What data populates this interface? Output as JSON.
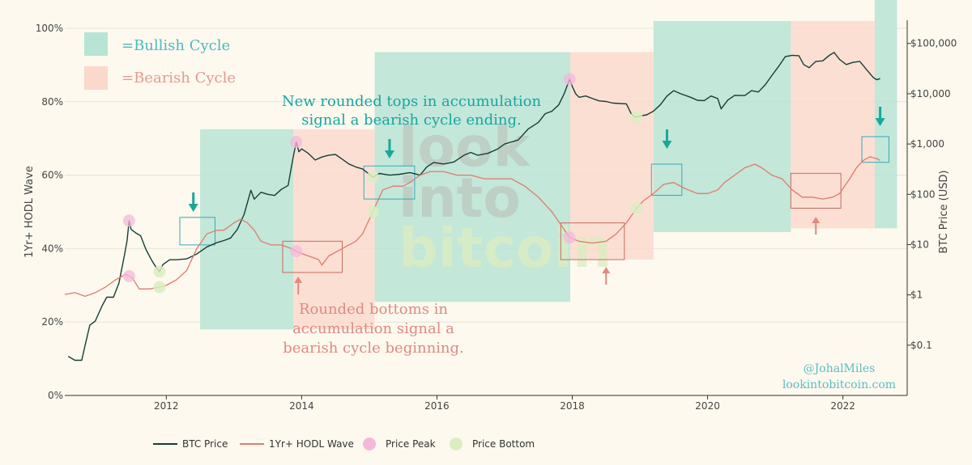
{
  "chart_data": {
    "type": "line",
    "title": "",
    "x_axis": {
      "range": [
        2010.5,
        2022.95
      ],
      "ticks": [
        2012,
        2014,
        2016,
        2018,
        2020,
        2022
      ],
      "tick_labels": [
        "2012",
        "2014",
        "2016",
        "2018",
        "2020",
        "2022"
      ]
    },
    "y_axis_left": {
      "label": "1Yr+ HODL Wave",
      "range": [
        0,
        100
      ],
      "ticks": [
        0,
        20,
        40,
        60,
        80,
        100
      ],
      "tick_labels": [
        "0%",
        "20%",
        "40%",
        "60%",
        "80%",
        "100%"
      ]
    },
    "y_axis_right": {
      "label": "BTC Price (USD)",
      "scale": "log",
      "range": [
        0.01,
        200000
      ],
      "ticks": [
        0.1,
        1,
        10,
        100,
        1000,
        10000,
        100000
      ],
      "tick_labels": [
        "$0.1",
        "$1",
        "$10",
        "$100",
        "$1,000",
        "$10,000",
        "$100,000"
      ]
    },
    "series": [
      {
        "name": "BTC Price",
        "axis": "right",
        "color": "#163e36",
        "points": [
          [
            2010.55,
            0.06
          ],
          [
            2010.65,
            0.05
          ],
          [
            2010.75,
            0.05
          ],
          [
            2010.8,
            0.1
          ],
          [
            2010.87,
            0.25
          ],
          [
            2010.95,
            0.3
          ],
          [
            2011.05,
            0.6
          ],
          [
            2011.12,
            0.9
          ],
          [
            2011.22,
            0.9
          ],
          [
            2011.3,
            1.7
          ],
          [
            2011.38,
            6
          ],
          [
            2011.42,
            12
          ],
          [
            2011.45,
            30
          ],
          [
            2011.48,
            20
          ],
          [
            2011.55,
            17
          ],
          [
            2011.62,
            15
          ],
          [
            2011.7,
            8
          ],
          [
            2011.78,
            5
          ],
          [
            2011.85,
            3.5
          ],
          [
            2011.9,
            2.9
          ],
          [
            2011.95,
            4
          ],
          [
            2012.05,
            5
          ],
          [
            2012.15,
            5
          ],
          [
            2012.3,
            5.2
          ],
          [
            2012.45,
            6.5
          ],
          [
            2012.6,
            9
          ],
          [
            2012.75,
            11
          ],
          [
            2012.85,
            12
          ],
          [
            2012.95,
            13.5
          ],
          [
            2013.05,
            20
          ],
          [
            2013.15,
            40
          ],
          [
            2013.25,
            120
          ],
          [
            2013.3,
            80
          ],
          [
            2013.4,
            110
          ],
          [
            2013.5,
            100
          ],
          [
            2013.6,
            95
          ],
          [
            2013.7,
            125
          ],
          [
            2013.8,
            150
          ],
          [
            2013.87,
            500
          ],
          [
            2013.92,
            1100
          ],
          [
            2013.96,
            700
          ],
          [
            2014.0,
            800
          ],
          [
            2014.1,
            650
          ],
          [
            2014.2,
            480
          ],
          [
            2014.3,
            550
          ],
          [
            2014.4,
            600
          ],
          [
            2014.5,
            620
          ],
          [
            2014.6,
            500
          ],
          [
            2014.7,
            400
          ],
          [
            2014.8,
            350
          ],
          [
            2014.9,
            320
          ],
          [
            2015.0,
            250
          ],
          [
            2015.05,
            220
          ],
          [
            2015.15,
            260
          ],
          [
            2015.3,
            240
          ],
          [
            2015.45,
            250
          ],
          [
            2015.6,
            270
          ],
          [
            2015.75,
            240
          ],
          [
            2015.85,
            350
          ],
          [
            2015.95,
            430
          ],
          [
            2016.1,
            400
          ],
          [
            2016.25,
            440
          ],
          [
            2016.4,
            600
          ],
          [
            2016.5,
            680
          ],
          [
            2016.6,
            600
          ],
          [
            2016.75,
            650
          ],
          [
            2016.9,
            800
          ],
          [
            2017.0,
            1000
          ],
          [
            2017.1,
            1100
          ],
          [
            2017.2,
            1200
          ],
          [
            2017.35,
            2000
          ],
          [
            2017.5,
            2700
          ],
          [
            2017.6,
            4000
          ],
          [
            2017.7,
            4500
          ],
          [
            2017.8,
            6000
          ],
          [
            2017.88,
            10000
          ],
          [
            2017.96,
            19500
          ],
          [
            2018.0,
            14000
          ],
          [
            2018.05,
            10000
          ],
          [
            2018.1,
            8500
          ],
          [
            2018.2,
            9000
          ],
          [
            2018.3,
            8000
          ],
          [
            2018.4,
            7200
          ],
          [
            2018.5,
            7000
          ],
          [
            2018.6,
            6500
          ],
          [
            2018.7,
            6400
          ],
          [
            2018.8,
            6300
          ],
          [
            2018.87,
            4000
          ],
          [
            2018.93,
            3400
          ],
          [
            2019.0,
            3600
          ],
          [
            2019.1,
            3800
          ],
          [
            2019.2,
            4500
          ],
          [
            2019.3,
            6000
          ],
          [
            2019.4,
            9000
          ],
          [
            2019.5,
            11500
          ],
          [
            2019.6,
            10000
          ],
          [
            2019.75,
            8500
          ],
          [
            2019.85,
            7400
          ],
          [
            2019.95,
            7300
          ],
          [
            2020.05,
            9000
          ],
          [
            2020.15,
            8000
          ],
          [
            2020.2,
            5000
          ],
          [
            2020.3,
            7500
          ],
          [
            2020.4,
            9300
          ],
          [
            2020.55,
            9200
          ],
          [
            2020.65,
            11500
          ],
          [
            2020.75,
            10800
          ],
          [
            2020.85,
            15000
          ],
          [
            2020.95,
            23000
          ],
          [
            2021.05,
            35000
          ],
          [
            2021.15,
            55000
          ],
          [
            2021.25,
            58000
          ],
          [
            2021.35,
            57000
          ],
          [
            2021.42,
            38000
          ],
          [
            2021.5,
            33000
          ],
          [
            2021.6,
            44000
          ],
          [
            2021.7,
            45000
          ],
          [
            2021.8,
            58000
          ],
          [
            2021.87,
            66000
          ],
          [
            2021.95,
            48000
          ],
          [
            2022.05,
            38000
          ],
          [
            2022.15,
            42000
          ],
          [
            2022.25,
            44000
          ],
          [
            2022.35,
            30000
          ],
          [
            2022.45,
            21000
          ],
          [
            2022.5,
            19000
          ],
          [
            2022.55,
            20000
          ]
        ]
      },
      {
        "name": "1Yr+ HODL Wave",
        "axis": "left",
        "color": "#e07a6e",
        "points": [
          [
            2010.5,
            27.5
          ],
          [
            2010.65,
            28
          ],
          [
            2010.8,
            27
          ],
          [
            2010.95,
            28
          ],
          [
            2011.1,
            29.5
          ],
          [
            2011.25,
            31.5
          ],
          [
            2011.4,
            33
          ],
          [
            2011.5,
            32
          ],
          [
            2011.6,
            29
          ],
          [
            2011.75,
            29
          ],
          [
            2011.9,
            29.5
          ],
          [
            2012.0,
            30
          ],
          [
            2012.15,
            31.5
          ],
          [
            2012.3,
            34
          ],
          [
            2012.45,
            40
          ],
          [
            2012.6,
            44
          ],
          [
            2012.75,
            45
          ],
          [
            2012.85,
            45
          ],
          [
            2013.0,
            47
          ],
          [
            2013.1,
            48
          ],
          [
            2013.2,
            47
          ],
          [
            2013.3,
            45
          ],
          [
            2013.4,
            42
          ],
          [
            2013.55,
            41
          ],
          [
            2013.7,
            41
          ],
          [
            2013.85,
            40
          ],
          [
            2013.95,
            39
          ],
          [
            2014.1,
            38
          ],
          [
            2014.25,
            37
          ],
          [
            2014.3,
            35.5
          ],
          [
            2014.4,
            38
          ],
          [
            2014.6,
            40
          ],
          [
            2014.8,
            42
          ],
          [
            2014.9,
            44
          ],
          [
            2015.0,
            48
          ],
          [
            2015.1,
            52
          ],
          [
            2015.2,
            56
          ],
          [
            2015.35,
            57
          ],
          [
            2015.5,
            57
          ],
          [
            2015.6,
            58
          ],
          [
            2015.75,
            60
          ],
          [
            2015.9,
            61
          ],
          [
            2016.1,
            61
          ],
          [
            2016.3,
            60
          ],
          [
            2016.5,
            60
          ],
          [
            2016.7,
            59
          ],
          [
            2016.9,
            59
          ],
          [
            2017.1,
            59
          ],
          [
            2017.3,
            57
          ],
          [
            2017.5,
            54
          ],
          [
            2017.7,
            50
          ],
          [
            2017.85,
            46
          ],
          [
            2017.96,
            43
          ],
          [
            2018.1,
            42
          ],
          [
            2018.3,
            41.5
          ],
          [
            2018.5,
            42
          ],
          [
            2018.65,
            44
          ],
          [
            2018.8,
            47
          ],
          [
            2018.95,
            51
          ],
          [
            2019.05,
            53
          ],
          [
            2019.2,
            55
          ],
          [
            2019.35,
            57.5
          ],
          [
            2019.5,
            58
          ],
          [
            2019.65,
            56.5
          ],
          [
            2019.85,
            55
          ],
          [
            2020.0,
            55
          ],
          [
            2020.15,
            56
          ],
          [
            2020.25,
            58
          ],
          [
            2020.4,
            60
          ],
          [
            2020.55,
            62
          ],
          [
            2020.7,
            63
          ],
          [
            2020.8,
            62
          ],
          [
            2020.95,
            60
          ],
          [
            2021.1,
            59
          ],
          [
            2021.25,
            56
          ],
          [
            2021.4,
            54
          ],
          [
            2021.55,
            54
          ],
          [
            2021.7,
            53.5
          ],
          [
            2021.85,
            54
          ],
          [
            2021.95,
            55
          ],
          [
            2022.1,
            59
          ],
          [
            2022.2,
            62
          ],
          [
            2022.3,
            64
          ],
          [
            2022.4,
            65
          ],
          [
            2022.5,
            64.5
          ],
          [
            2022.55,
            64
          ]
        ]
      }
    ],
    "cycles": [
      {
        "type": "bullish",
        "x": [
          2012.5,
          2013.88
        ],
        "y": [
          18,
          72.5
        ]
      },
      {
        "type": "bearish",
        "x": [
          2013.88,
          2015.08
        ],
        "y": [
          18,
          72.5
        ]
      },
      {
        "type": "bullish",
        "x": [
          2015.08,
          2017.97
        ],
        "y": [
          25.5,
          93.5
        ]
      },
      {
        "type": "bearish",
        "x": [
          2017.97,
          2019.2
        ],
        "y": [
          37,
          93.5
        ]
      },
      {
        "type": "bullish",
        "x": [
          2019.2,
          2021.23
        ],
        "y": [
          44.5,
          102
        ]
      },
      {
        "type": "bearish",
        "x": [
          2021.23,
          2022.47
        ],
        "y": [
          45.5,
          102
        ]
      },
      {
        "type": "bullish",
        "x": [
          2022.47,
          2022.8
        ],
        "y": [
          45.5,
          110
        ]
      }
    ],
    "rounded_top_boxes": [
      {
        "x": [
          2012.2,
          2012.72
        ],
        "y": [
          41,
          48.5
        ]
      },
      {
        "x": [
          2014.92,
          2015.67
        ],
        "y": [
          53.5,
          62.5
        ]
      },
      {
        "x": [
          2019.17,
          2019.62
        ],
        "y": [
          54.5,
          63
        ]
      },
      {
        "x": [
          2022.28,
          2022.68
        ],
        "y": [
          63.5,
          70.5
        ]
      }
    ],
    "rounded_bottom_boxes": [
      {
        "x": [
          2013.72,
          2014.6
        ],
        "y": [
          33.5,
          42
        ]
      },
      {
        "x": [
          2017.83,
          2018.77
        ],
        "y": [
          37,
          47
        ]
      },
      {
        "x": [
          2021.23,
          2021.97
        ],
        "y": [
          51,
          60.5
        ]
      }
    ],
    "price_peaks": [
      {
        "x": 2011.45,
        "series": "BTC Price"
      },
      {
        "x": 2013.92,
        "series": "BTC Price"
      },
      {
        "x": 2017.96,
        "series": "BTC Price"
      },
      {
        "x": 2011.45,
        "series": "1Yr+ HODL Wave"
      },
      {
        "x": 2013.92,
        "series": "1Yr+ HODL Wave"
      },
      {
        "x": 2017.96,
        "series": "1Yr+ HODL Wave"
      }
    ],
    "price_bottoms": [
      {
        "x": 2011.9,
        "series": "BTC Price"
      },
      {
        "x": 2015.05,
        "series": "BTC Price"
      },
      {
        "x": 2018.95,
        "series": "BTC Price"
      },
      {
        "x": 2011.9,
        "series": "1Yr+ HODL Wave"
      },
      {
        "x": 2015.05,
        "series": "1Yr+ HODL Wave"
      },
      {
        "x": 2018.95,
        "series": "1Yr+ HODL Wave"
      }
    ],
    "arrows_down": [
      2012.4,
      2015.3,
      2019.4,
      2022.55
    ],
    "arrows_up": [
      2013.95,
      2018.5,
      2021.6
    ],
    "colors": {
      "bullish_fill": "#b8e4d5",
      "bearish_fill": "#fbd8cc",
      "top_box": "#3aa8b8",
      "bottom_box": "#c86a62",
      "arrow_down": "#18a898",
      "arrow_up": "#e08a82",
      "peak": "#f4b8dc",
      "bottom": "#dcedc2",
      "teal_text": "#17a6a0",
      "red_text": "#de8a82",
      "watermark_dark": "#bcc6bd",
      "watermark_light": "#dcecc0",
      "price_line": "#163e36",
      "hodl_line": "#e07a6e"
    },
    "legend_placement": "bottom",
    "annotations": {
      "top_text": [
        "New rounded tops in accumulation",
        "signal a bearish cycle ending."
      ],
      "bottom_text": [
        "Rounded bottoms in",
        "accumulation signal a",
        "bearish cycle beginning."
      ]
    }
  },
  "key": {
    "bullish_label": "=Bullish Cycle",
    "bearish_label": "=Bearish Cycle"
  },
  "watermark": {
    "line1": "look",
    "line2": "into",
    "line3": "bitcoin"
  },
  "credit": {
    "handle": "@JohalMiles",
    "site": "lookintobitcoin.com"
  },
  "legend": [
    {
      "label": "BTC Price",
      "kind": "line",
      "color": "#163e36"
    },
    {
      "label": "1Yr+ HODL Wave",
      "kind": "line",
      "color": "#e07a6e"
    },
    {
      "label": "Price Peak",
      "kind": "dot",
      "color": "#f4b8dc"
    },
    {
      "label": "Price Bottom",
      "kind": "dot",
      "color": "#dcedc2"
    }
  ]
}
